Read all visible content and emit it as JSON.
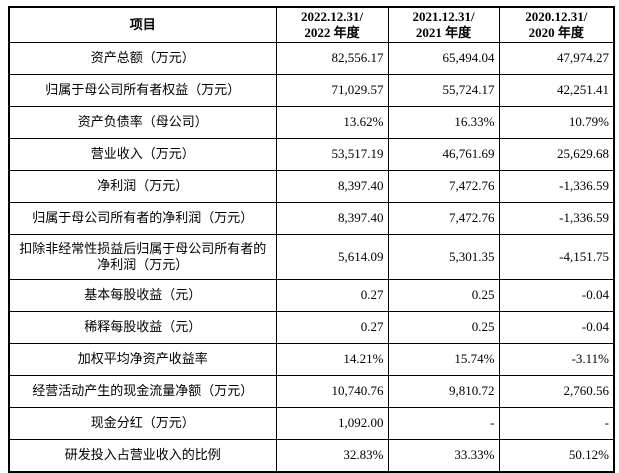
{
  "table": {
    "header": {
      "item": "项目",
      "columns": [
        {
          "line1": "2022.12.31/",
          "line2": "2022 年度"
        },
        {
          "line1": "2021.12.31/",
          "line2": "2021 年度"
        },
        {
          "line1": "2020.12.31/",
          "line2": "2020 年度"
        }
      ]
    },
    "rows": [
      {
        "label": "资产总额（万元）",
        "values": [
          "82,556.17",
          "65,494.04",
          "47,974.27"
        ]
      },
      {
        "label": "归属于母公司所有者权益（万元）",
        "values": [
          "71,029.57",
          "55,724.17",
          "42,251.41"
        ]
      },
      {
        "label": "资产负债率（母公司）",
        "values": [
          "13.62%",
          "16.33%",
          "10.79%"
        ]
      },
      {
        "label": "营业收入（万元）",
        "values": [
          "53,517.19",
          "46,761.69",
          "25,629.68"
        ]
      },
      {
        "label": "净利润（万元）",
        "values": [
          "8,397.40",
          "7,472.76",
          "-1,336.59"
        ]
      },
      {
        "label": "归属于母公司所有者的净利润（万元）",
        "values": [
          "8,397.40",
          "7,472.76",
          "-1,336.59"
        ]
      },
      {
        "label": "扣除非经常性损益后归属于母公司所有者的净利润（万元）",
        "values": [
          "5,614.09",
          "5,301.35",
          "-4,151.75"
        ]
      },
      {
        "label": "基本每股收益（元）",
        "values": [
          "0.27",
          "0.25",
          "-0.04"
        ]
      },
      {
        "label": "稀释每股收益（元）",
        "values": [
          "0.27",
          "0.25",
          "-0.04"
        ]
      },
      {
        "label": "加权平均净资产收益率",
        "values": [
          "14.21%",
          "15.74%",
          "-3.11%"
        ]
      },
      {
        "label": "经营活动产生的现金流量净额（万元）",
        "values": [
          "10,740.76",
          "9,810.72",
          "2,760.56"
        ]
      },
      {
        "label": "现金分红（万元）",
        "values": [
          "1,092.00",
          "-",
          "-"
        ]
      },
      {
        "label": "研发投入占营业收入的比例",
        "values": [
          "32.83%",
          "33.33%",
          "50.12%"
        ]
      }
    ]
  }
}
